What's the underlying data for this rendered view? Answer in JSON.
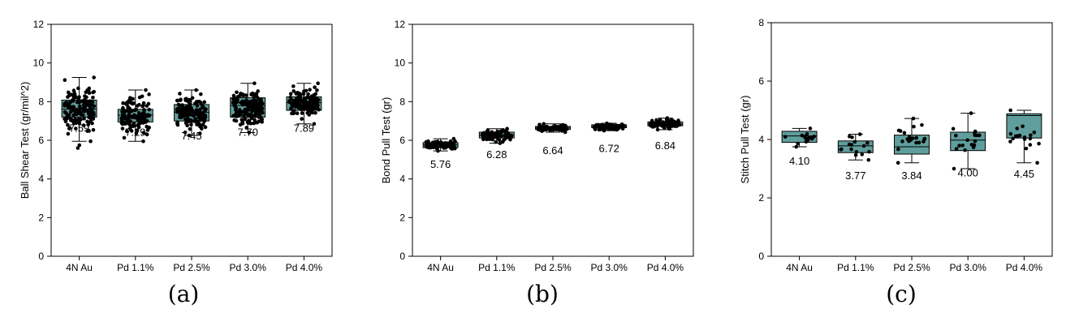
{
  "chart_data": [
    {
      "type": "box",
      "caption": "(a)",
      "ylabel": "Ball Shear Test (gr/mil^2)",
      "xlabel": "",
      "ylim": [
        0,
        12
      ],
      "yticks": [
        0,
        2,
        4,
        6,
        8,
        10,
        12
      ],
      "yticklabels": [
        "0",
        "2",
        "4",
        "6",
        "8",
        "10",
        "12"
      ],
      "categories": [
        "4N Au",
        "Pd 1.1%",
        "Pd 2.5%",
        "Pd 3.0%",
        "Pd 4.0%"
      ],
      "box_color": "#5f9e9c",
      "boxes": [
        {
          "min": 5.95,
          "q1": 7.2,
          "median": 7.62,
          "q3": 8.08,
          "max": 9.25
        },
        {
          "min": 5.95,
          "q1": 6.95,
          "median": 7.3,
          "q3": 7.6,
          "max": 8.6
        },
        {
          "min": 6.25,
          "q1": 7.0,
          "median": 7.45,
          "q3": 7.85,
          "max": 8.6
        },
        {
          "min": 6.4,
          "q1": 7.2,
          "median": 7.8,
          "q3": 8.2,
          "max": 8.95
        },
        {
          "min": 6.85,
          "q1": 7.55,
          "median": 7.95,
          "q3": 8.25,
          "max": 8.95
        }
      ],
      "mean_labels": [
        "7.59",
        "7.29",
        "7.45",
        "7.70",
        "7.89"
      ],
      "label_y": [
        6.6,
        6.4,
        6.2,
        6.4,
        6.6
      ],
      "points_per_box": [
        160,
        140,
        140,
        160,
        140
      ],
      "outliers": [
        [
          5.6,
          5.75
        ],
        [],
        [],
        [],
        []
      ]
    },
    {
      "type": "box",
      "caption": "(b)",
      "ylabel": "Bond Pull Test (gr)",
      "xlabel": "",
      "ylim": [
        0,
        12
      ],
      "yticks": [
        0,
        2,
        4,
        6,
        8,
        10,
        12
      ],
      "yticklabels": [
        "0",
        "2",
        "4",
        "6",
        "8",
        "10",
        "12"
      ],
      "categories": [
        "4N Au",
        "Pd 1.1%",
        "Pd 2.5%",
        "Pd 3.0%",
        "Pd 4.0%"
      ],
      "box_color": "#5f9e9c",
      "boxes": [
        {
          "min": 5.45,
          "q1": 5.62,
          "median": 5.76,
          "q3": 5.88,
          "max": 6.08
        },
        {
          "min": 5.85,
          "q1": 6.12,
          "median": 6.28,
          "q3": 6.42,
          "max": 6.6
        },
        {
          "min": 6.42,
          "q1": 6.56,
          "median": 6.64,
          "q3": 6.72,
          "max": 6.85
        },
        {
          "min": 6.5,
          "q1": 6.65,
          "median": 6.72,
          "q3": 6.8,
          "max": 6.88
        },
        {
          "min": 6.55,
          "q1": 6.75,
          "median": 6.84,
          "q3": 6.95,
          "max": 7.15
        }
      ],
      "mean_labels": [
        "5.76",
        "6.28",
        "6.64",
        "6.72",
        "6.84"
      ],
      "label_y": [
        4.75,
        5.25,
        5.45,
        5.55,
        5.7
      ],
      "points_per_box": [
        90,
        90,
        80,
        80,
        90
      ],
      "outliers": [
        [],
        [],
        [],
        [],
        []
      ]
    },
    {
      "type": "box",
      "caption": "(c)",
      "ylabel": "Stitch Pull Test (gr)",
      "xlabel": "",
      "ylim": [
        0,
        8
      ],
      "yticks": [
        0,
        2,
        4,
        6,
        8
      ],
      "yticklabels": [
        "0",
        "2",
        "4",
        "6",
        "8"
      ],
      "categories": [
        "4N Au",
        "Pd 1.1%",
        "Pd 2.5%",
        "Pd 3.0%",
        "Pd 4.0%"
      ],
      "box_color": "#5f9e9c",
      "boxes": [
        {
          "min": 3.75,
          "q1": 3.9,
          "median": 4.12,
          "q3": 4.28,
          "max": 4.38
        },
        {
          "min": 3.3,
          "q1": 3.55,
          "median": 3.78,
          "q3": 3.95,
          "max": 4.18
        },
        {
          "min": 3.2,
          "q1": 3.5,
          "median": 3.75,
          "q3": 4.15,
          "max": 4.72
        },
        {
          "min": 3.0,
          "q1": 3.62,
          "median": 3.98,
          "q3": 4.25,
          "max": 4.9
        },
        {
          "min": 3.2,
          "q1": 4.05,
          "median": 4.82,
          "q3": 4.88,
          "max": 5.0
        }
      ],
      "mean_labels": [
        "4.10",
        "3.77",
        "3.84",
        "4.00",
        "4.45"
      ],
      "label_y": [
        3.25,
        2.75,
        2.75,
        2.85,
        2.8
      ],
      "points_per_box": [
        14,
        16,
        20,
        18,
        18
      ],
      "outliers": [
        [],
        [],
        [],
        [],
        []
      ]
    }
  ]
}
